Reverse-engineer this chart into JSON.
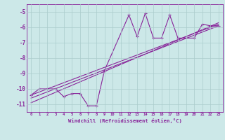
{
  "xlabel": "Windchill (Refroidissement éolien,°C)",
  "bg_color": "#cce8e8",
  "line_color": "#882299",
  "grid_color": "#aacccc",
  "xlim": [
    -0.5,
    23.5
  ],
  "ylim": [
    -11.5,
    -4.5
  ],
  "yticks": [
    -11,
    -10,
    -9,
    -8,
    -7,
    -6,
    -5
  ],
  "xticks": [
    0,
    1,
    2,
    3,
    4,
    5,
    6,
    7,
    8,
    9,
    10,
    11,
    12,
    13,
    14,
    15,
    16,
    17,
    18,
    19,
    20,
    21,
    22,
    23
  ],
  "jagged_x": [
    0,
    1,
    2,
    3,
    4,
    5,
    6,
    7,
    8,
    9,
    12,
    13,
    14,
    15,
    16,
    17,
    18,
    20,
    21,
    22,
    23
  ],
  "jagged_y": [
    -10.4,
    -10.0,
    -10.0,
    -10.0,
    -10.5,
    -10.3,
    -10.3,
    -11.1,
    -11.1,
    -8.8,
    -5.2,
    -6.6,
    -5.1,
    -6.7,
    -6.7,
    -5.2,
    -6.7,
    -6.7,
    -5.8,
    -5.9,
    -5.9
  ],
  "line1_x": [
    0,
    23
  ],
  "line1_y": [
    -10.4,
    -5.8
  ],
  "line2_x": [
    0,
    23
  ],
  "line2_y": [
    -10.6,
    -5.9
  ],
  "line3_x": [
    0,
    23
  ],
  "line3_y": [
    -10.9,
    -5.7
  ]
}
